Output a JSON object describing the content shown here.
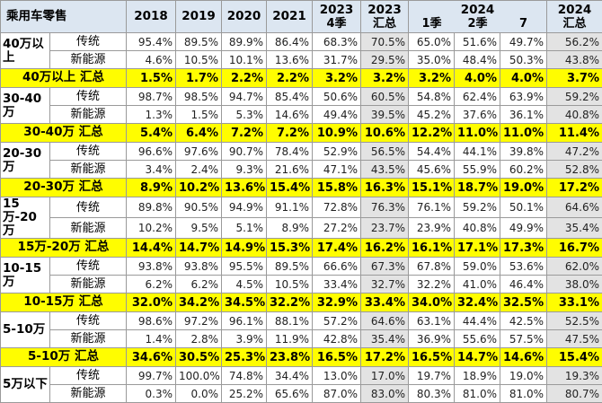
{
  "header": {
    "segment": "乘用车零售",
    "years": [
      "2018",
      "2019",
      "2020",
      "2021"
    ],
    "q2023": {
      "year": "2023",
      "sub": "4季"
    },
    "t2023": {
      "year": "2023",
      "sub": "汇总"
    },
    "y2024": "2024",
    "q2024a": "1季",
    "q2024b": "2季",
    "m2024": "7",
    "t2024": {
      "year": "2024",
      "sub": "汇总"
    }
  },
  "groups": [
    {
      "name": "40万以上",
      "rows": [
        {
          "sub": "传统",
          "vals": [
            "95.4%",
            "89.5%",
            "89.9%",
            "86.4%",
            "68.3%",
            "70.5%",
            "65.0%",
            "51.6%",
            "49.7%",
            "56.2%"
          ]
        },
        {
          "sub": "新能源",
          "vals": [
            "4.6%",
            "10.5%",
            "10.1%",
            "13.6%",
            "31.7%",
            "29.5%",
            "35.0%",
            "48.4%",
            "50.3%",
            "43.8%"
          ]
        }
      ],
      "summary": {
        "label": "40万以上 汇总",
        "vals": [
          "1.5%",
          "1.7%",
          "2.2%",
          "2.2%",
          "3.2%",
          "3.2%",
          "3.2%",
          "4.0%",
          "4.0%",
          "3.7%"
        ]
      }
    },
    {
      "name": "30-40万",
      "rows": [
        {
          "sub": "传统",
          "vals": [
            "98.7%",
            "98.5%",
            "94.7%",
            "85.4%",
            "50.6%",
            "60.5%",
            "54.8%",
            "62.4%",
            "63.9%",
            "59.2%"
          ]
        },
        {
          "sub": "新能源",
          "vals": [
            "1.3%",
            "1.5%",
            "5.3%",
            "14.6%",
            "49.4%",
            "39.5%",
            "45.2%",
            "37.6%",
            "36.1%",
            "40.8%"
          ]
        }
      ],
      "summary": {
        "label": "30-40万 汇总",
        "vals": [
          "5.4%",
          "6.4%",
          "7.2%",
          "7.2%",
          "10.9%",
          "10.6%",
          "12.2%",
          "11.0%",
          "11.0%",
          "11.4%"
        ]
      }
    },
    {
      "name": "20-30万",
      "rows": [
        {
          "sub": "传统",
          "vals": [
            "96.6%",
            "97.6%",
            "90.7%",
            "78.4%",
            "52.9%",
            "56.5%",
            "54.4%",
            "44.1%",
            "39.8%",
            "47.2%"
          ]
        },
        {
          "sub": "新能源",
          "vals": [
            "3.4%",
            "2.4%",
            "9.3%",
            "21.6%",
            "47.1%",
            "43.5%",
            "45.6%",
            "55.9%",
            "60.2%",
            "52.8%"
          ]
        }
      ],
      "summary": {
        "label": "20-30万 汇总",
        "vals": [
          "8.9%",
          "10.2%",
          "13.6%",
          "15.4%",
          "15.8%",
          "16.3%",
          "15.1%",
          "18.7%",
          "19.0%",
          "17.2%"
        ]
      }
    },
    {
      "name": "15万-20万",
      "rows": [
        {
          "sub": "传统",
          "vals": [
            "89.8%",
            "90.5%",
            "94.9%",
            "91.1%",
            "72.8%",
            "76.3%",
            "76.1%",
            "59.2%",
            "50.1%",
            "64.6%"
          ]
        },
        {
          "sub": "新能源",
          "vals": [
            "10.2%",
            "9.5%",
            "5.1%",
            "8.9%",
            "27.2%",
            "23.7%",
            "23.9%",
            "40.8%",
            "49.9%",
            "35.4%"
          ]
        }
      ],
      "summary": {
        "label": "15万-20万 汇总",
        "vals": [
          "14.4%",
          "14.7%",
          "14.9%",
          "15.3%",
          "17.4%",
          "16.2%",
          "16.1%",
          "17.1%",
          "17.3%",
          "16.7%"
        ]
      }
    },
    {
      "name": "10-15万",
      "rows": [
        {
          "sub": "传统",
          "vals": [
            "93.8%",
            "93.8%",
            "95.5%",
            "89.5%",
            "66.6%",
            "67.3%",
            "67.8%",
            "59.0%",
            "53.6%",
            "62.0%"
          ]
        },
        {
          "sub": "新能源",
          "vals": [
            "6.2%",
            "6.2%",
            "4.5%",
            "10.5%",
            "33.4%",
            "32.7%",
            "32.2%",
            "41.0%",
            "46.4%",
            "38.0%"
          ]
        }
      ],
      "summary": {
        "label": "10-15万 汇总",
        "vals": [
          "32.0%",
          "34.2%",
          "34.5%",
          "32.2%",
          "32.9%",
          "33.4%",
          "34.0%",
          "32.4%",
          "32.5%",
          "33.1%"
        ]
      }
    },
    {
      "name": "5-10万",
      "rows": [
        {
          "sub": "传统",
          "vals": [
            "98.6%",
            "97.2%",
            "96.1%",
            "88.1%",
            "57.2%",
            "64.6%",
            "63.1%",
            "44.4%",
            "42.5%",
            "52.5%"
          ]
        },
        {
          "sub": "新能源",
          "vals": [
            "1.4%",
            "2.8%",
            "3.9%",
            "11.9%",
            "42.8%",
            "35.4%",
            "36.9%",
            "55.6%",
            "57.5%",
            "47.5%"
          ]
        }
      ],
      "summary": {
        "label": "5-10万 汇总",
        "vals": [
          "34.6%",
          "30.5%",
          "25.3%",
          "23.8%",
          "16.5%",
          "17.2%",
          "16.5%",
          "14.7%",
          "14.6%",
          "15.4%"
        ]
      }
    },
    {
      "name": "5万以下",
      "rows": [
        {
          "sub": "传统",
          "vals": [
            "99.7%",
            "100.0%",
            "74.8%",
            "34.4%",
            "13.0%",
            "17.0%",
            "19.7%",
            "18.9%",
            "19.0%",
            "19.3%"
          ]
        },
        {
          "sub": "新能源",
          "vals": [
            "0.3%",
            "0.0%",
            "25.2%",
            "65.6%",
            "87.0%",
            "83.0%",
            "80.3%",
            "81.0%",
            "81.0%",
            "80.7%"
          ]
        }
      ]
    }
  ],
  "colors": {
    "summary_bg": "#fffd00",
    "header_bg": "#dce6f1",
    "total_col_bg": "#e3e3e3"
  }
}
